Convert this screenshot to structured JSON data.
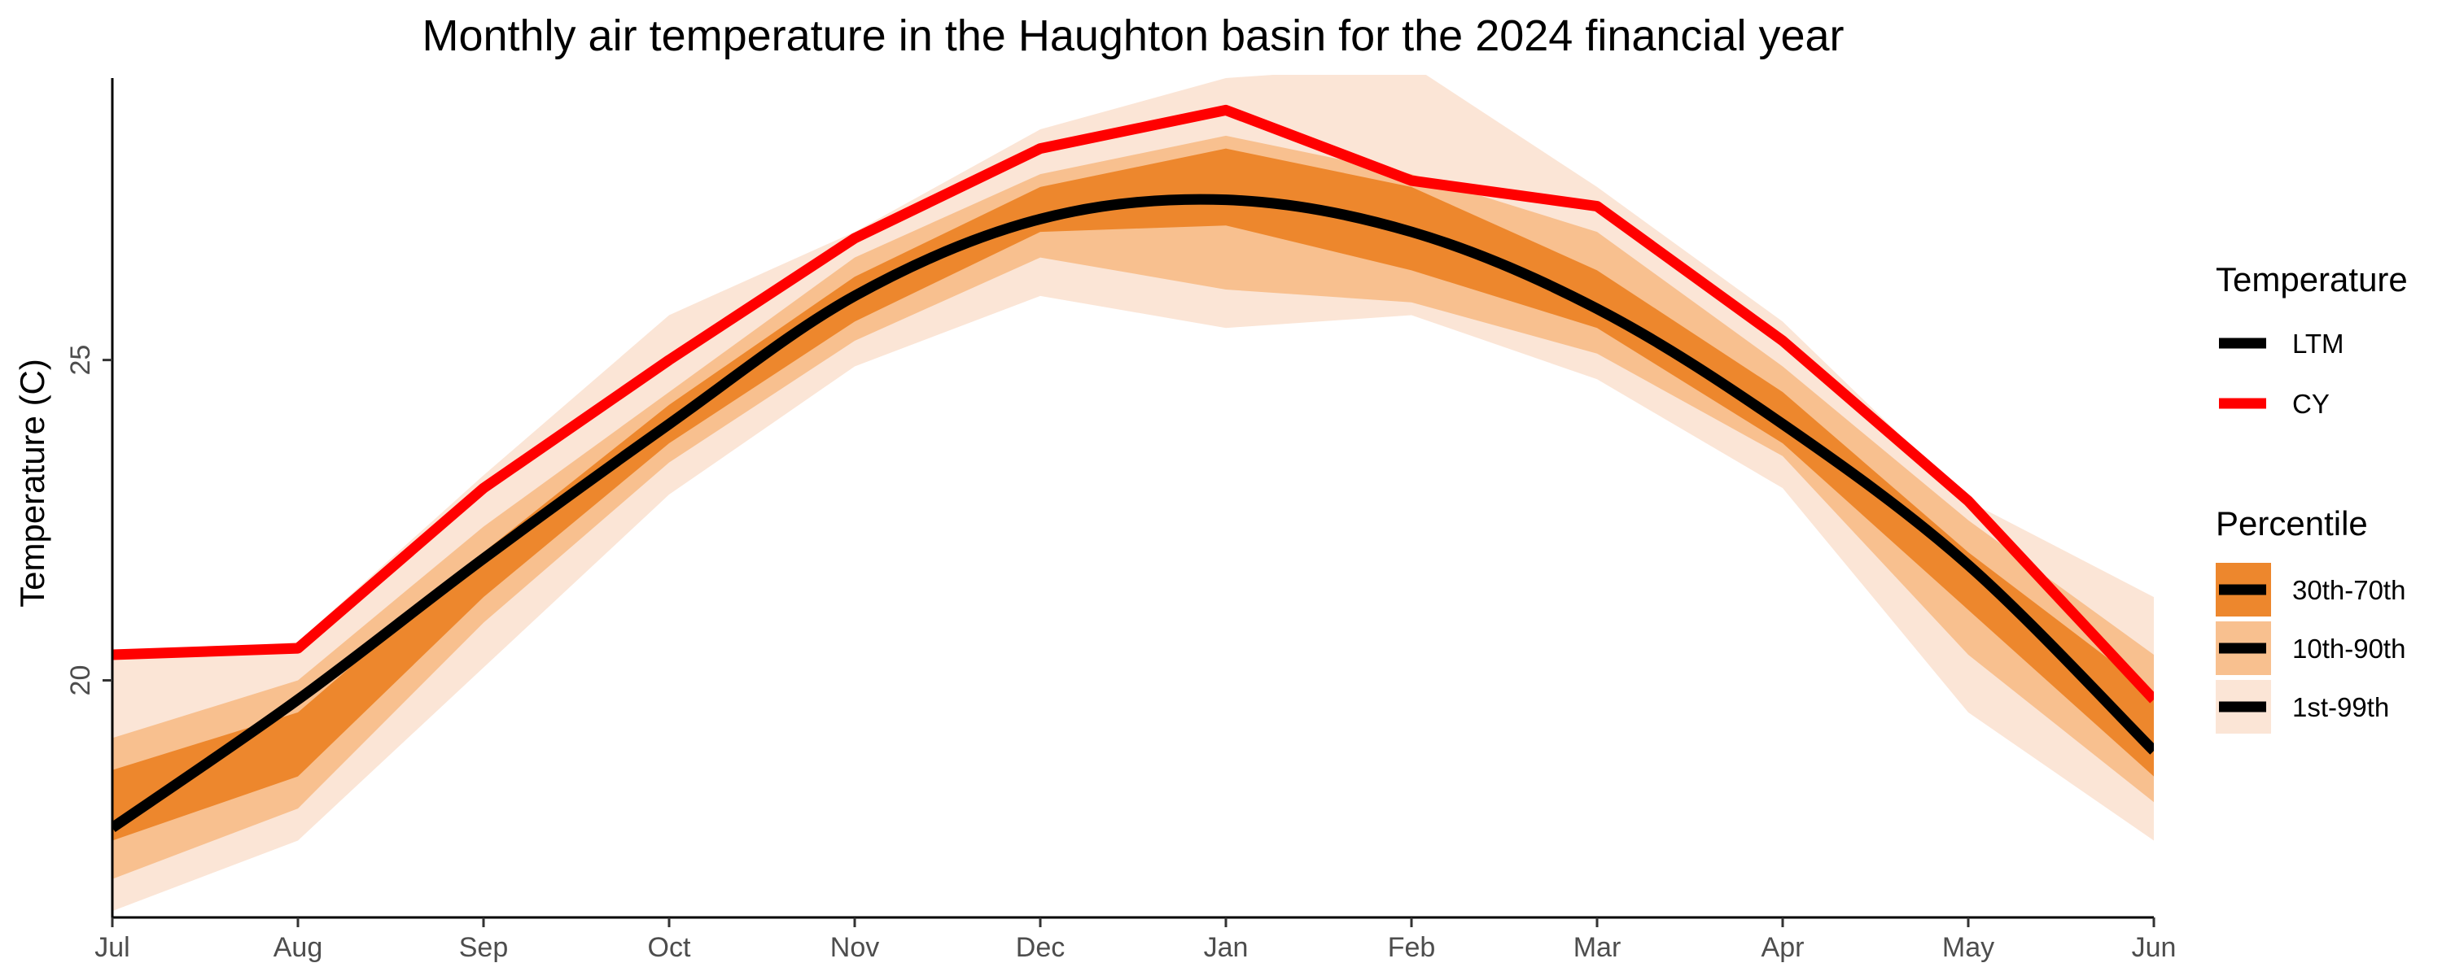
{
  "chart_data": {
    "type": "area",
    "title": "Monthly air temperature in the Haughton basin for the 2024 financial year",
    "xlabel": "",
    "ylabel": "Temperature (C)",
    "categories": [
      "Jul",
      "Aug",
      "Sep",
      "Oct",
      "Nov",
      "Dec",
      "Jan",
      "Feb",
      "Mar",
      "Apr",
      "May",
      "Jun"
    ],
    "ylim": [
      16.3,
      29.4
    ],
    "yticks": [
      20,
      25
    ],
    "grid": false,
    "series": [
      {
        "name": "LTM",
        "color": "#000000",
        "values": [
          17.7,
          19.7,
          21.9,
          24.0,
          26.0,
          27.2,
          27.5,
          27.0,
          25.8,
          24.0,
          21.8,
          18.9
        ]
      },
      {
        "name": "CY",
        "color": "#ff0000",
        "values": [
          20.4,
          20.5,
          23.0,
          25.0,
          26.9,
          28.3,
          28.9,
          27.8,
          27.4,
          25.3,
          22.8,
          19.7
        ]
      }
    ],
    "bands": [
      {
        "name": "1st-99th",
        "color": "#fbe5d6",
        "lower": [
          16.4,
          17.5,
          20.2,
          22.9,
          24.9,
          26.0,
          25.5,
          25.7,
          24.7,
          23.0,
          19.5,
          17.5
        ],
        "upper": [
          20.4,
          20.6,
          23.2,
          25.7,
          27.0,
          28.6,
          29.4,
          29.6,
          27.7,
          25.6,
          22.8,
          21.3
        ]
      },
      {
        "name": "10th-90th",
        "color": "#f8c08f",
        "lower": [
          16.9,
          18.0,
          20.9,
          23.4,
          25.3,
          26.6,
          26.1,
          25.9,
          25.1,
          23.5,
          20.4,
          18.1
        ],
        "upper": [
          19.1,
          20.0,
          22.4,
          24.5,
          26.6,
          27.9,
          28.5,
          27.9,
          27.0,
          24.9,
          22.5,
          20.4
        ]
      },
      {
        "name": "30th-70th",
        "color": "#ed872d",
        "lower": [
          17.5,
          18.5,
          21.3,
          23.7,
          25.6,
          27.0,
          27.1,
          26.4,
          25.5,
          23.7,
          21.1,
          18.5
        ],
        "upper": [
          18.6,
          19.5,
          22.0,
          24.3,
          26.3,
          27.7,
          28.3,
          27.7,
          26.4,
          24.5,
          22.0,
          19.8
        ]
      }
    ],
    "legend_position": "right"
  },
  "legend": {
    "temperature_title": "Temperature",
    "temperature_items": [
      "LTM",
      "CY"
    ],
    "percentile_title": "Percentile",
    "percentile_items": [
      "30th-70th",
      "10th-90th",
      "1st-99th"
    ]
  }
}
